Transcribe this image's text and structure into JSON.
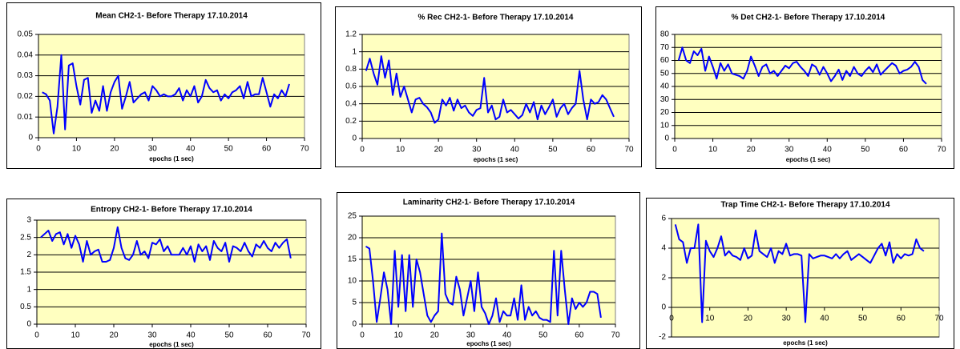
{
  "chart_data": [
    {
      "type": "line",
      "title": "Mean CH2-1- Before Therapy 17.10.2014",
      "x_label": "epochs (1 sec)",
      "x": [
        1,
        2,
        3,
        4,
        5,
        6,
        7,
        8,
        9,
        10,
        11,
        12,
        13,
        14,
        15,
        16,
        17,
        18,
        19,
        20,
        21,
        22,
        23,
        24,
        25,
        26,
        27,
        28,
        29,
        30,
        31,
        32,
        33,
        34,
        35,
        36,
        37,
        38,
        39,
        40,
        41,
        42,
        43,
        44,
        45,
        46,
        47,
        48,
        49,
        50,
        51,
        52,
        53,
        54,
        55,
        56,
        57,
        58,
        59,
        60,
        61,
        62,
        63,
        64,
        65,
        66
      ],
      "values": [
        0.022,
        0.021,
        0.018,
        0.002,
        0.015,
        0.04,
        0.004,
        0.035,
        0.036,
        0.025,
        0.016,
        0.028,
        0.029,
        0.012,
        0.018,
        0.013,
        0.025,
        0.013,
        0.022,
        0.027,
        0.03,
        0.014,
        0.02,
        0.027,
        0.017,
        0.019,
        0.021,
        0.022,
        0.018,
        0.025,
        0.023,
        0.02,
        0.021,
        0.02,
        0.02,
        0.021,
        0.024,
        0.018,
        0.023,
        0.02,
        0.025,
        0.017,
        0.02,
        0.028,
        0.024,
        0.022,
        0.023,
        0.018,
        0.021,
        0.019,
        0.022,
        0.023,
        0.025,
        0.019,
        0.027,
        0.02,
        0.021,
        0.021,
        0.029,
        0.022,
        0.015,
        0.021,
        0.019,
        0.023,
        0.02,
        0.026
      ],
      "color": "#0000ff",
      "xlim": [
        0,
        70
      ],
      "xticks": [
        0,
        10,
        20,
        30,
        40,
        50,
        60,
        70
      ],
      "ylim": [
        0,
        0.05
      ],
      "yticks": [
        0,
        0.01,
        0.02,
        0.03,
        0.04,
        0.05
      ],
      "grid": true
    },
    {
      "type": "line",
      "title": "% Rec CH2-1- Before Therapy 17.10.2014",
      "x_label": "epochs (1 sec)",
      "x": [
        1,
        2,
        3,
        4,
        5,
        6,
        7,
        8,
        9,
        10,
        11,
        12,
        13,
        14,
        15,
        16,
        17,
        18,
        19,
        20,
        21,
        22,
        23,
        24,
        25,
        26,
        27,
        28,
        29,
        30,
        31,
        32,
        33,
        34,
        35,
        36,
        37,
        38,
        39,
        40,
        41,
        42,
        43,
        44,
        45,
        46,
        47,
        48,
        49,
        50,
        51,
        52,
        53,
        54,
        55,
        56,
        57,
        58,
        59,
        60,
        61,
        62,
        63,
        64,
        65,
        66
      ],
      "values": [
        0.78,
        0.92,
        0.75,
        0.62,
        0.95,
        0.7,
        0.9,
        0.5,
        0.75,
        0.48,
        0.6,
        0.45,
        0.3,
        0.45,
        0.47,
        0.4,
        0.36,
        0.3,
        0.18,
        0.22,
        0.45,
        0.38,
        0.47,
        0.32,
        0.45,
        0.35,
        0.38,
        0.3,
        0.26,
        0.33,
        0.35,
        0.7,
        0.3,
        0.38,
        0.22,
        0.25,
        0.45,
        0.3,
        0.33,
        0.28,
        0.23,
        0.27,
        0.4,
        0.3,
        0.42,
        0.22,
        0.38,
        0.28,
        0.36,
        0.45,
        0.25,
        0.35,
        0.4,
        0.28,
        0.35,
        0.4,
        0.78,
        0.45,
        0.22,
        0.45,
        0.4,
        0.42,
        0.5,
        0.45,
        0.35,
        0.25
      ],
      "color": "#0000ff",
      "xlim": [
        0,
        70
      ],
      "xticks": [
        0,
        10,
        20,
        30,
        40,
        50,
        60,
        70
      ],
      "ylim": [
        0,
        1.2
      ],
      "yticks": [
        0,
        0.2,
        0.4,
        0.6,
        0.8,
        1,
        1.2
      ],
      "grid": true
    },
    {
      "type": "line",
      "title": "% Det CH2-1- Before Therapy 17.10.2014",
      "x_label": "epochs (1 sec)",
      "x": [
        1,
        2,
        3,
        4,
        5,
        6,
        7,
        8,
        9,
        10,
        11,
        12,
        13,
        14,
        15,
        16,
        17,
        18,
        19,
        20,
        21,
        22,
        23,
        24,
        25,
        26,
        27,
        28,
        29,
        30,
        31,
        32,
        33,
        34,
        35,
        36,
        37,
        38,
        39,
        40,
        41,
        42,
        43,
        44,
        45,
        46,
        47,
        48,
        49,
        50,
        51,
        52,
        53,
        54,
        55,
        56,
        57,
        58,
        59,
        60,
        61,
        62,
        63,
        64,
        65,
        66
      ],
      "values": [
        60,
        70,
        60,
        58,
        67,
        64,
        69,
        52,
        63,
        55,
        46,
        58,
        52,
        57,
        50,
        49,
        48,
        46,
        52,
        63,
        56,
        48,
        55,
        57,
        50,
        52,
        48,
        52,
        56,
        54,
        58,
        59,
        55,
        52,
        48,
        57,
        55,
        49,
        55,
        50,
        44,
        48,
        53,
        45,
        52,
        48,
        55,
        50,
        48,
        52,
        55,
        51,
        57,
        49,
        52,
        55,
        58,
        56,
        50,
        52,
        53,
        55,
        59,
        55,
        45,
        42
      ],
      "color": "#0000ff",
      "xlim": [
        0,
        70
      ],
      "xticks": [
        0,
        10,
        20,
        30,
        40,
        50,
        60,
        70
      ],
      "ylim": [
        0,
        80
      ],
      "yticks": [
        0,
        10,
        20,
        30,
        40,
        50,
        60,
        70,
        80
      ],
      "grid": true
    },
    {
      "type": "line",
      "title": "Entropy CH2-1- Before Therapy 17.10.2014",
      "x_label": "epochs (1 sec)",
      "x": [
        1,
        2,
        3,
        4,
        5,
        6,
        7,
        8,
        9,
        10,
        11,
        12,
        13,
        14,
        15,
        16,
        17,
        18,
        19,
        20,
        21,
        22,
        23,
        24,
        25,
        26,
        27,
        28,
        29,
        30,
        31,
        32,
        33,
        34,
        35,
        36,
        37,
        38,
        39,
        40,
        41,
        42,
        43,
        44,
        45,
        46,
        47,
        48,
        49,
        50,
        51,
        52,
        53,
        54,
        55,
        56,
        57,
        58,
        59,
        60,
        61,
        62,
        63,
        64,
        65,
        66
      ],
      "values": [
        2.5,
        2.6,
        2.7,
        2.4,
        2.6,
        2.65,
        2.3,
        2.6,
        2.2,
        2.55,
        2.3,
        1.8,
        2.4,
        2.0,
        2.1,
        2.15,
        1.8,
        1.8,
        1.85,
        2.2,
        2.8,
        2.2,
        1.9,
        1.85,
        2.0,
        2.4,
        2.0,
        2.1,
        1.9,
        2.35,
        2.3,
        2.45,
        2.1,
        2.25,
        2.0,
        2.0,
        2.0,
        2.2,
        2.0,
        2.25,
        1.8,
        2.3,
        2.1,
        2.25,
        1.85,
        2.4,
        2.2,
        2.1,
        2.35,
        1.8,
        2.25,
        2.2,
        2.1,
        2.35,
        2.1,
        1.95,
        2.3,
        2.2,
        2.4,
        2.2,
        2.1,
        2.35,
        2.2,
        2.35,
        2.45,
        1.9
      ],
      "color": "#0000ff",
      "xlim": [
        0,
        70
      ],
      "xticks": [
        0,
        10,
        20,
        30,
        40,
        50,
        60,
        70
      ],
      "ylim": [
        0,
        3
      ],
      "yticks": [
        0,
        0.5,
        1,
        1.5,
        2,
        2.5,
        3
      ],
      "grid": true
    },
    {
      "type": "line",
      "title": "Laminarity CH2-1- Before Therapy 17.10.2014",
      "x_label": "epochs (1 sec)",
      "x": [
        1,
        2,
        3,
        4,
        5,
        6,
        7,
        8,
        9,
        10,
        11,
        12,
        13,
        14,
        15,
        16,
        17,
        18,
        19,
        20,
        21,
        22,
        23,
        24,
        25,
        26,
        27,
        28,
        29,
        30,
        31,
        32,
        33,
        34,
        35,
        36,
        37,
        38,
        39,
        40,
        41,
        42,
        43,
        44,
        45,
        46,
        47,
        48,
        49,
        50,
        51,
        52,
        53,
        54,
        55,
        56,
        57,
        58,
        59,
        60,
        61,
        62,
        63,
        64,
        65,
        66
      ],
      "values": [
        18,
        17.5,
        10,
        0.5,
        6,
        12,
        8,
        0,
        17,
        4,
        16,
        3,
        16,
        4,
        15,
        12,
        7,
        2,
        0.5,
        2,
        3,
        21,
        7,
        5,
        4.5,
        11,
        8,
        2,
        6,
        10,
        3,
        12,
        4,
        2.5,
        0,
        2,
        6,
        0.5,
        3,
        2,
        2,
        6,
        1,
        9,
        1,
        4,
        2,
        3,
        1.5,
        1,
        1,
        0.5,
        17,
        2,
        17,
        8,
        0,
        6,
        3.5,
        5,
        4,
        5,
        7.5,
        7.5,
        7,
        1.5
      ],
      "color": "#0000ff",
      "xlim": [
        0,
        70
      ],
      "xticks": [
        0,
        10,
        20,
        30,
        40,
        50,
        60,
        70
      ],
      "ylim": [
        0,
        25
      ],
      "yticks": [
        0,
        5,
        10,
        15,
        20,
        25
      ],
      "grid": true
    },
    {
      "type": "line",
      "title": "Trap Time CH2-1- Before Therapy 17.10.2014",
      "x_label": "epochs (1 sec)",
      "x": [
        1,
        2,
        3,
        4,
        5,
        6,
        7,
        8,
        9,
        10,
        11,
        12,
        13,
        14,
        15,
        16,
        17,
        18,
        19,
        20,
        21,
        22,
        23,
        24,
        25,
        26,
        27,
        28,
        29,
        30,
        31,
        32,
        33,
        34,
        35,
        36,
        37,
        38,
        39,
        40,
        41,
        42,
        43,
        44,
        45,
        46,
        47,
        48,
        49,
        50,
        51,
        52,
        53,
        54,
        55,
        56,
        57,
        58,
        59,
        60,
        61,
        62,
        63,
        64,
        65,
        66
      ],
      "values": [
        5.6,
        4.6,
        4.4,
        3.0,
        4.0,
        4.0,
        5.6,
        -1.0,
        4.5,
        3.8,
        3.4,
        4.0,
        4.8,
        3.5,
        3.8,
        3.5,
        3.4,
        3.2,
        4.0,
        3.3,
        3.5,
        5.2,
        3.8,
        3.6,
        3.4,
        4.0,
        3.0,
        3.8,
        3.6,
        4.3,
        3.5,
        3.6,
        3.6,
        3.5,
        -1.0,
        3.6,
        3.3,
        3.4,
        3.5,
        3.5,
        3.4,
        3.3,
        3.6,
        3.3,
        3.6,
        3.8,
        3.2,
        3.4,
        3.6,
        3.4,
        3.2,
        3.0,
        3.5,
        4.0,
        4.3,
        3.5,
        4.4,
        3.0,
        3.6,
        3.3,
        3.6,
        3.5,
        3.6,
        4.6,
        4.0,
        3.8
      ],
      "color": "#0000ff",
      "xlim": [
        0,
        70
      ],
      "xticks": [
        0,
        10,
        20,
        30,
        40,
        50,
        60,
        70
      ],
      "ylim": [
        -2,
        6
      ],
      "yticks": [
        -2,
        0,
        2,
        4,
        6
      ],
      "grid": true
    }
  ]
}
